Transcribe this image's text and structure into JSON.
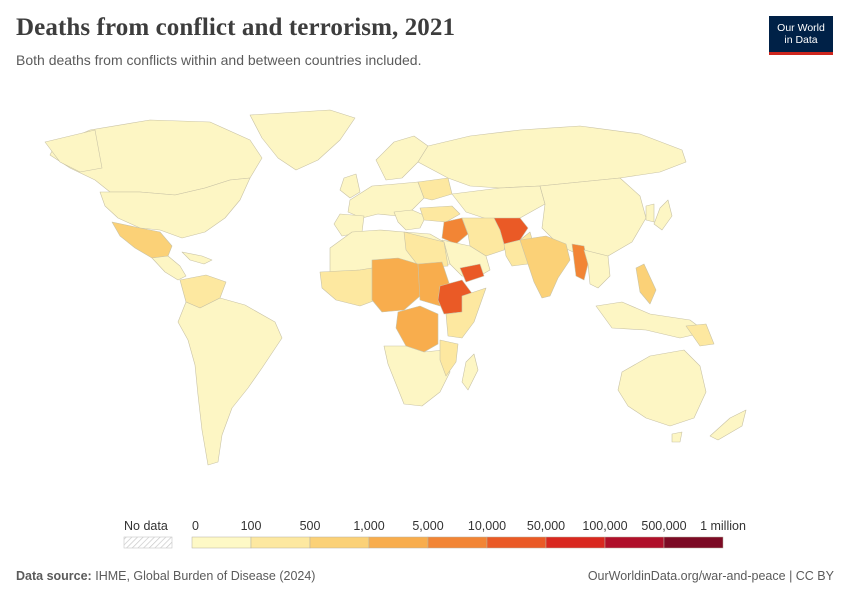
{
  "header": {
    "title": "Deaths from conflict and terrorism, 2021",
    "subtitle": "Both deaths from conflicts within and between countries included."
  },
  "logo": {
    "line1": "Our World",
    "line2": "in Data"
  },
  "legend": {
    "no_data_label": "No data",
    "tick_labels": [
      "0",
      "100",
      "500",
      "1,000",
      "5,000",
      "10,000",
      "50,000",
      "100,000",
      "500,000",
      "1 million"
    ],
    "colors": [
      "#fef9c6",
      "#fde8a0",
      "#fbd177",
      "#f8ad4d",
      "#f28535",
      "#ea5a26",
      "#d9281f",
      "#b0102a",
      "#7c0a24"
    ]
  },
  "footer": {
    "source_label": "Data source:",
    "source_text": "IHME, Global Burden of Disease (2024)",
    "link": "OurWorldinData.org/war-and-peace | CC BY"
  },
  "map_colors": {
    "base": "#fdf6c4",
    "low": "#fde8a0",
    "mid": "#fbd177",
    "mid_high": "#f8ad4d",
    "high": "#f28535",
    "very_high": "#ea5a26",
    "border": "#c9c3a6"
  }
}
